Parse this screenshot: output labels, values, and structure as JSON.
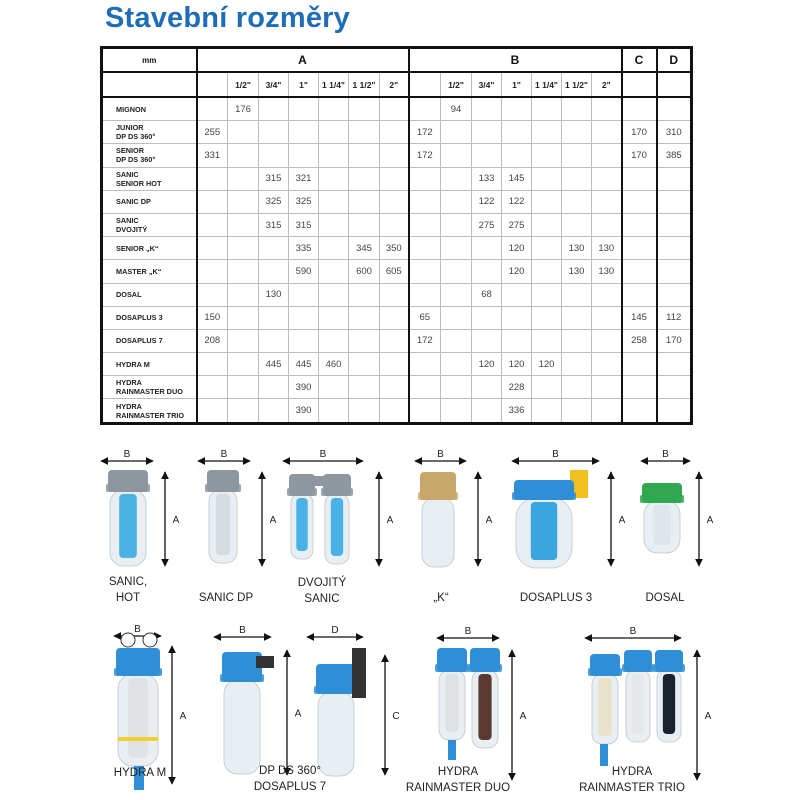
{
  "title": "Stavební rozměry",
  "table": {
    "corner_label": "mm",
    "groups": [
      "A",
      "B",
      "C",
      "D"
    ],
    "sizes": [
      "",
      "1/2\"",
      "3/4\"",
      "1\"",
      "1 1/4\"",
      "1 1/2\"",
      "2\""
    ],
    "rows": [
      {
        "name": [
          "MIGNON"
        ],
        "a": [
          "",
          "176",
          "",
          "",
          "",
          "",
          ""
        ],
        "b": [
          "",
          "94",
          "",
          "",
          "",
          "",
          ""
        ],
        "c": "",
        "d": ""
      },
      {
        "name": [
          "JUNIOR",
          "DP DS 360°"
        ],
        "a": [
          "255",
          "",
          "",
          "",
          "",
          "",
          ""
        ],
        "b": [
          "172",
          "",
          "",
          "",
          "",
          "",
          ""
        ],
        "c": "170",
        "d": "310"
      },
      {
        "name": [
          "SENIOR",
          "DP DS 360°"
        ],
        "a": [
          "331",
          "",
          "",
          "",
          "",
          "",
          ""
        ],
        "b": [
          "172",
          "",
          "",
          "",
          "",
          "",
          ""
        ],
        "c": "170",
        "d": "385"
      },
      {
        "name": [
          "SANIC",
          "SENIOR HOT"
        ],
        "a": [
          "",
          "",
          "315",
          "321",
          "",
          "",
          ""
        ],
        "b": [
          "",
          "",
          "133",
          "145",
          "",
          "",
          ""
        ],
        "c": "",
        "d": ""
      },
      {
        "name": [
          "SANIC DP"
        ],
        "a": [
          "",
          "",
          "325",
          "325",
          "",
          "",
          ""
        ],
        "b": [
          "",
          "",
          "122",
          "122",
          "",
          "",
          ""
        ],
        "c": "",
        "d": ""
      },
      {
        "name": [
          "SANIC",
          "DVOJITÝ"
        ],
        "a": [
          "",
          "",
          "315",
          "315",
          "",
          "",
          ""
        ],
        "b": [
          "",
          "",
          "275",
          "275",
          "",
          "",
          ""
        ],
        "c": "",
        "d": ""
      },
      {
        "name": [
          "SENIOR „K“"
        ],
        "a": [
          "",
          "",
          "",
          "335",
          "",
          "345",
          "350"
        ],
        "b": [
          "",
          "",
          "",
          "120",
          "",
          "130",
          "130"
        ],
        "c": "",
        "d": ""
      },
      {
        "name": [
          "MASTER „K“"
        ],
        "a": [
          "",
          "",
          "",
          "590",
          "",
          "600",
          "605"
        ],
        "b": [
          "",
          "",
          "",
          "120",
          "",
          "130",
          "130"
        ],
        "c": "",
        "d": ""
      },
      {
        "name": [
          "DOSAL"
        ],
        "a": [
          "",
          "",
          "130",
          "",
          "",
          "",
          ""
        ],
        "b": [
          "",
          "",
          "68",
          "",
          "",
          "",
          ""
        ],
        "c": "",
        "d": ""
      },
      {
        "name": [
          "DOSAPLUS 3"
        ],
        "a": [
          "150",
          "",
          "",
          "",
          "",
          "",
          ""
        ],
        "b": [
          "65",
          "",
          "",
          "",
          "",
          "",
          ""
        ],
        "c": "145",
        "d": "112"
      },
      {
        "name": [
          "DOSAPLUS 7"
        ],
        "a": [
          "208",
          "",
          "",
          "",
          "",
          "",
          ""
        ],
        "b": [
          "172",
          "",
          "",
          "",
          "",
          "",
          ""
        ],
        "c": "258",
        "d": "170"
      },
      {
        "name": [
          "HYDRA M"
        ],
        "a": [
          "",
          "",
          "445",
          "445",
          "460",
          "",
          ""
        ],
        "b": [
          "",
          "",
          "120",
          "120",
          "120",
          "",
          ""
        ],
        "c": "",
        "d": ""
      },
      {
        "name": [
          "HYDRA",
          "RAINMASTER DUO"
        ],
        "a": [
          "",
          "",
          "",
          "390",
          "",
          "",
          ""
        ],
        "b": [
          "",
          "",
          "",
          "228",
          "",
          "",
          ""
        ],
        "c": "",
        "d": ""
      },
      {
        "name": [
          "HYDRA",
          "RAINMASTER TRIO"
        ],
        "a": [
          "",
          "",
          "",
          "390",
          "",
          "",
          ""
        ],
        "b": [
          "",
          "",
          "",
          "336",
          "",
          "",
          ""
        ],
        "c": "",
        "d": ""
      }
    ]
  },
  "figures": [
    {
      "label": [
        "SANIC,",
        "HOT"
      ],
      "width_dim": "B",
      "height_dim": "A"
    },
    {
      "label": [
        "SANIC DP"
      ],
      "width_dim": "B",
      "height_dim": "A"
    },
    {
      "label": [
        "DVOJITÝ",
        "SANIC"
      ],
      "width_dim": "B",
      "height_dim": "A"
    },
    {
      "label": [
        "„K“"
      ],
      "width_dim": "B",
      "height_dim": "A"
    },
    {
      "label": [
        "DOSAPLUS 3"
      ],
      "width_dim": "B",
      "height_dim": "A"
    },
    {
      "label": [
        "DOSAL"
      ],
      "width_dim": "B",
      "height_dim": "A"
    },
    {
      "label": [
        "HYDRA M"
      ],
      "width_dim": "B",
      "height_dim": "A"
    },
    {
      "label": [
        "DP DS 360°",
        "DOSAPLUS 7"
      ],
      "width_dim": "B",
      "height_dim": "A",
      "width_dim_2": "D",
      "height_dim_2": "C"
    },
    {
      "label": [
        "HYDRA",
        "RAINMASTER DUO"
      ],
      "width_dim": "B",
      "height_dim": "A"
    },
    {
      "label": [
        "HYDRA",
        "RAINMASTER TRIO"
      ],
      "width_dim": "B",
      "height_dim": "A"
    }
  ],
  "colors": {
    "title": "#1f6db7",
    "cap_grey": "#8c979f",
    "cap_blue": "#2f8fd6",
    "core_blue": "#4ab2e6",
    "brass": "#c8a86a",
    "green": "#2fa84f",
    "bowl": "#e8eef2"
  }
}
